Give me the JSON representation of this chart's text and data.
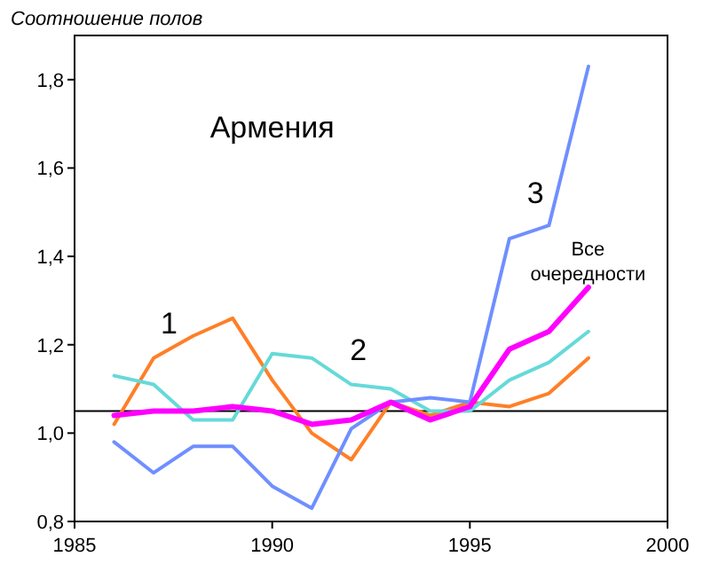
{
  "chart_data": {
    "type": "line",
    "title": "Армения",
    "ylabel": "Соотношение полов",
    "x": [
      1986,
      1987,
      1988,
      1989,
      1990,
      1991,
      1992,
      1993,
      1994,
      1995,
      1996,
      1997,
      1998
    ],
    "series": [
      {
        "name": "1",
        "color": "#ff7f27",
        "values": [
          1.02,
          1.17,
          1.22,
          1.26,
          1.12,
          1.0,
          0.94,
          1.07,
          1.04,
          1.07,
          1.06,
          1.09,
          1.17
        ]
      },
      {
        "name": "2",
        "color": "#66d9d9",
        "values": [
          1.13,
          1.11,
          1.03,
          1.03,
          1.18,
          1.17,
          1.11,
          1.1,
          1.05,
          1.05,
          1.12,
          1.16,
          1.23
        ]
      },
      {
        "name": "3",
        "color": "#6f8fff",
        "values": [
          0.98,
          0.91,
          0.97,
          0.97,
          0.88,
          0.83,
          1.01,
          1.07,
          1.08,
          1.07,
          1.44,
          1.47,
          1.83
        ]
      },
      {
        "name": "Все очередности",
        "color": "#ff00ff",
        "values": [
          1.04,
          1.05,
          1.05,
          1.06,
          1.05,
          1.02,
          1.03,
          1.07,
          1.03,
          1.06,
          1.19,
          1.23,
          1.33
        ]
      }
    ],
    "xlim": [
      1985,
      2000
    ],
    "xticks": [
      1985,
      1990,
      1995,
      2000
    ],
    "ylim": [
      0.8,
      1.9
    ],
    "yticks": [
      {
        "value": 0.8,
        "label": "0,8"
      },
      {
        "value": 1.0,
        "label": "1,0"
      },
      {
        "value": 1.2,
        "label": "1,2"
      },
      {
        "value": 1.4,
        "label": "1,4"
      },
      {
        "value": 1.6,
        "label": "1,6"
      },
      {
        "value": 1.8,
        "label": "1,8"
      }
    ],
    "ref_lines": [
      {
        "axis": "y",
        "value": 1.05,
        "color": "#000000"
      }
    ],
    "grid": false
  }
}
